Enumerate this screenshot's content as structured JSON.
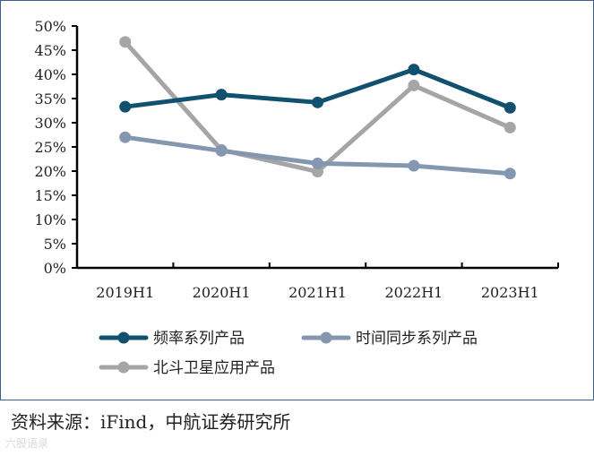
{
  "chart_data": {
    "type": "line",
    "categories": [
      "2019H1",
      "2020H1",
      "2021H1",
      "2022H1",
      "2023H1"
    ],
    "ylim": [
      0,
      50
    ],
    "y_ticks": [
      "0%",
      "5%",
      "10%",
      "15%",
      "20%",
      "25%",
      "30%",
      "35%",
      "40%",
      "45%",
      "50%"
    ],
    "grid": false,
    "legend_position": "bottom",
    "series": [
      {
        "name": "频率系列产品",
        "values": [
          33.3,
          35.8,
          34.2,
          41.0,
          33.1
        ],
        "color": "#11506e"
      },
      {
        "name": "时间同步系列产品",
        "values": [
          27.0,
          24.2,
          21.6,
          21.1,
          19.5
        ],
        "color": "#8496b0"
      },
      {
        "name": "北斗卫星应用产品",
        "values": [
          46.7,
          24.4,
          19.9,
          37.7,
          29.0
        ],
        "color": "#a5a5a5"
      }
    ]
  },
  "source": "资料来源：iFind，中航证券研究所",
  "watermark": "六股语录"
}
